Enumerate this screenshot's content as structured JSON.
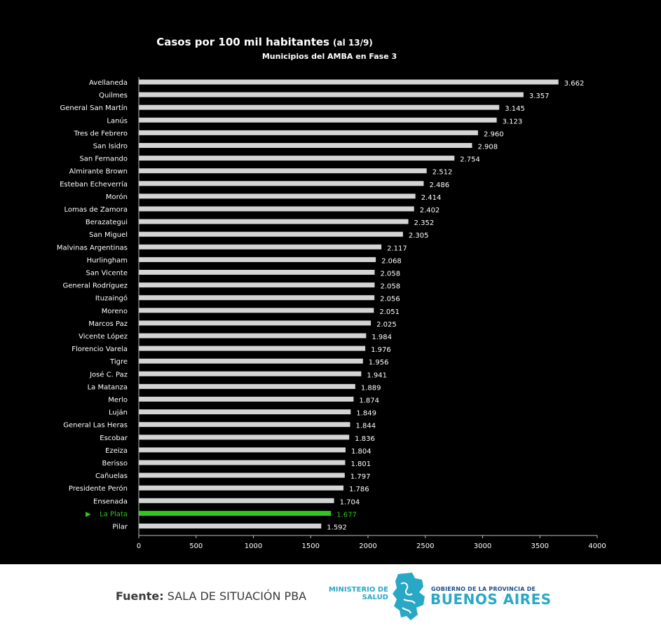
{
  "chart_data": {
    "type": "bar",
    "orientation": "horizontal",
    "title": "Casos por 100 mil habitantes",
    "title_note": "(al 13/9)",
    "subtitle": "Municipios del AMBA en Fase 3",
    "categories": [
      "Avellaneda",
      "Quilmes",
      "General San Martín",
      "Lanús",
      "Tres de Febrero",
      "San Isidro",
      "San Fernando",
      "Almirante Brown",
      "Esteban Echeverría",
      "Morón",
      "Lomas de Zamora",
      "Berazategui",
      "San Miguel",
      "Malvinas Argentinas",
      "Hurlingham",
      "San Vicente",
      "General Rodríguez",
      "Ituzaingó",
      "Moreno",
      "Marcos Paz",
      "Vicente López",
      "Florencio Varela",
      "Tigre",
      "José C. Paz",
      "La Matanza",
      "Merlo",
      "Luján",
      "General Las Heras",
      "Escobar",
      "Ezeiza",
      "Berisso",
      "Cañuelas",
      "Presidente Perón",
      "Ensenada",
      "La Plata",
      "Pilar"
    ],
    "values": [
      3662,
      3357,
      3145,
      3123,
      2960,
      2908,
      2754,
      2512,
      2486,
      2414,
      2402,
      2352,
      2305,
      2117,
      2068,
      2058,
      2058,
      2056,
      2051,
      2025,
      1984,
      1976,
      1956,
      1941,
      1889,
      1874,
      1849,
      1844,
      1836,
      1804,
      1801,
      1797,
      1786,
      1704,
      1677,
      1592
    ],
    "value_labels": [
      "3.662",
      "3.357",
      "3.145",
      "3.123",
      "2.960",
      "2.908",
      "2.754",
      "2.512",
      "2.486",
      "2.414",
      "2.402",
      "2.352",
      "2.305",
      "2.117",
      "2.068",
      "2.058",
      "2.058",
      "2.056",
      "2.051",
      "2.025",
      "1.984",
      "1.976",
      "1.956",
      "1.941",
      "1.889",
      "1.874",
      "1.849",
      "1.844",
      "1.836",
      "1.804",
      "1.801",
      "1.797",
      "1.786",
      "1.704",
      "1.677",
      "1.592"
    ],
    "highlight": "La Plata",
    "highlight_marker": "▶",
    "xlim": [
      0,
      4000
    ],
    "xticks": [
      0,
      500,
      1000,
      1500,
      2000,
      2500,
      3000,
      3500,
      4000
    ],
    "grid": false,
    "colors": {
      "bar": "#d4d4d4",
      "highlight": "#2fc81e",
      "background": "#000000",
      "text": "#ffffff"
    }
  },
  "footer": {
    "source_label": "Fuente:",
    "source_text": "SALA DE SITUACIÓN PBA",
    "ministerio_line1": "MINISTERIO DE",
    "ministerio_line2": "SALUD",
    "gobierno_text": "GOBIERNO DE LA PROVINCIA DE",
    "buenos_aires_text": "BUENOS AIRES",
    "colors": {
      "accent": "#29a8c6",
      "navy": "#1d4e89"
    }
  }
}
